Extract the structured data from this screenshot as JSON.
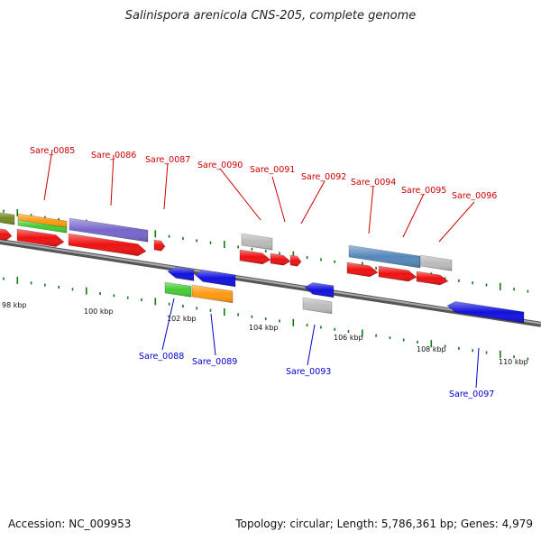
{
  "title": "Salinispora arenicola CNS-205, complete genome",
  "footer": {
    "accession": "Accession: NC_009953",
    "summary": "Topology: circular; Length: 5,786,361 bp; Genes: 4,979"
  },
  "ticks": [
    "98 kbp",
    "100 kbp",
    "102 kbp",
    "104 kbp",
    "106 kbp",
    "108 kbp",
    "110 kbp"
  ],
  "labels_top": [
    "Sare_0085",
    "Sare_0086",
    "Sare_0087",
    "Sare_0090",
    "Sare_0091",
    "Sare_0092",
    "Sare_0094",
    "Sare_0095",
    "Sare_0096"
  ],
  "labels_bottom": [
    "Sare_0088",
    "Sare_0089",
    "Sare_0093",
    "Sare_0097"
  ],
  "colors": {
    "forward": "#ee1111",
    "reverse": "#1111dd",
    "grey": "#bbbbbb",
    "orange": "#ff9910",
    "green": "#44cc33",
    "purple": "#7766cc",
    "steel": "#5588bb",
    "olive": "#778822",
    "backbone": "#888888",
    "tick": "#117711",
    "label_top": "#cc0000",
    "label_bottom": "#0000cc"
  }
}
